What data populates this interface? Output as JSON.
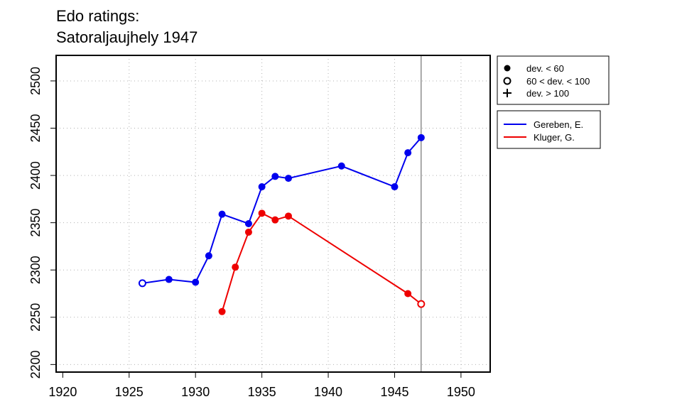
{
  "chart_data": {
    "type": "line",
    "title_lines": [
      "Edo ratings:",
      "Satoraljaujhely 1947"
    ],
    "xlabel": "",
    "ylabel": "",
    "xlim": [
      1919.5,
      1952.2
    ],
    "ylim": [
      2192,
      2527
    ],
    "x_ticks": [
      1920,
      1925,
      1930,
      1935,
      1940,
      1945,
      1950
    ],
    "y_ticks": [
      2200,
      2250,
      2300,
      2350,
      2400,
      2450,
      2500
    ],
    "grid": "dotted",
    "vline_x": 1947,
    "legend_markers": [
      {
        "symbol": "filled-circle",
        "label": "dev. < 60"
      },
      {
        "symbol": "open-circle",
        "label": "60 < dev. < 100"
      },
      {
        "symbol": "plus",
        "label": "dev. > 100"
      }
    ],
    "legend_placement": "right",
    "series": [
      {
        "name": "Gereben, E.",
        "color": "#0000ee",
        "points": [
          {
            "x": 1926,
            "y": 2286,
            "marker": "open"
          },
          {
            "x": 1928,
            "y": 2290,
            "marker": "filled"
          },
          {
            "x": 1930,
            "y": 2287,
            "marker": "filled"
          },
          {
            "x": 1931,
            "y": 2315,
            "marker": "filled"
          },
          {
            "x": 1932,
            "y": 2359,
            "marker": "filled"
          },
          {
            "x": 1934,
            "y": 2349,
            "marker": "filled"
          },
          {
            "x": 1935,
            "y": 2388,
            "marker": "filled"
          },
          {
            "x": 1936,
            "y": 2399,
            "marker": "filled"
          },
          {
            "x": 1937,
            "y": 2397,
            "marker": "filled"
          },
          {
            "x": 1941,
            "y": 2410,
            "marker": "filled"
          },
          {
            "x": 1945,
            "y": 2388,
            "marker": "filled"
          },
          {
            "x": 1946,
            "y": 2424,
            "marker": "filled"
          },
          {
            "x": 1947,
            "y": 2440,
            "marker": "filled"
          }
        ]
      },
      {
        "name": "Kluger, G.",
        "color": "#ee0000",
        "points": [
          {
            "x": 1932,
            "y": 2256,
            "marker": "filled"
          },
          {
            "x": 1933,
            "y": 2303,
            "marker": "filled"
          },
          {
            "x": 1934,
            "y": 2340,
            "marker": "filled"
          },
          {
            "x": 1935,
            "y": 2360,
            "marker": "filled"
          },
          {
            "x": 1936,
            "y": 2353,
            "marker": "filled"
          },
          {
            "x": 1937,
            "y": 2357,
            "marker": "filled"
          },
          {
            "x": 1946,
            "y": 2275,
            "marker": "filled"
          },
          {
            "x": 1947,
            "y": 2264,
            "marker": "open"
          }
        ]
      }
    ]
  }
}
